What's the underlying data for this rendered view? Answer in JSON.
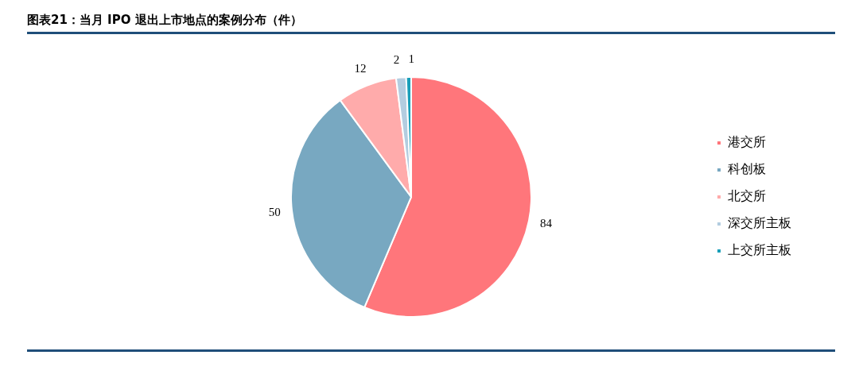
{
  "chart_data": {
    "type": "pie",
    "title": "图表21：当月 IPO 退出上市地点的案例分布（件）",
    "categories": [
      "港交所",
      "科创板",
      "北交所",
      "深交所主板",
      "上交所主板"
    ],
    "values": [
      84,
      50,
      12,
      2,
      1
    ],
    "colors": [
      "#ff767b",
      "#78a8c1",
      "#ffabab",
      "#b3cde0",
      "#1a9fb9"
    ],
    "data_labels": true,
    "legend": "right"
  }
}
